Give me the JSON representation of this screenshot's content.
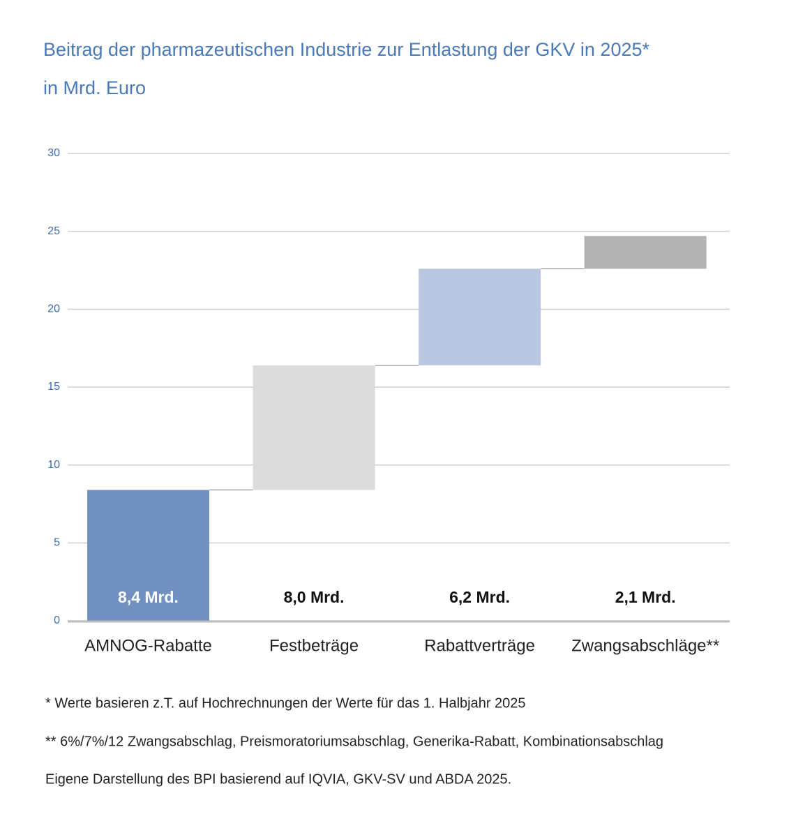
{
  "chart_data": {
    "type": "waterfall",
    "title": "Beitrag der pharmazeutischen Industrie zur Entlastung der GKV in 2025*",
    "subtitle": "in Mrd. Euro",
    "categories": [
      "AMNOG-Rabatte",
      "Festbeträge",
      "Rabattverträge",
      "Zwangsabschläge**"
    ],
    "values": [
      8.4,
      8.0,
      6.2,
      2.1
    ],
    "value_labels": [
      "8,4 Mrd.",
      "8,0 Mrd.",
      "6,2 Mrd.",
      "2,1 Mrd."
    ],
    "colors": [
      "#7291c0",
      "#dcdcdc",
      "#b9c7e0",
      "#b3b3b3"
    ],
    "value_label_colors": [
      "#ffffff",
      "#111111",
      "#111111",
      "#111111"
    ],
    "ylim": [
      0,
      30
    ],
    "yticks": [
      0,
      5,
      10,
      15,
      20,
      25,
      30
    ],
    "grid": true
  },
  "notes": [
    "* Werte basieren z.T. auf Hochrechnungen der Werte für das 1. Halbjahr 2025",
    "** 6%/7%/12 Zwangsabschlag, Preismoratoriumsabschlag, Generika-Rabatt, Kombinationsabschlag",
    "Eigene Darstellung des BPI basierend auf IQVIA, GKV-SV und ABDA 2025."
  ]
}
